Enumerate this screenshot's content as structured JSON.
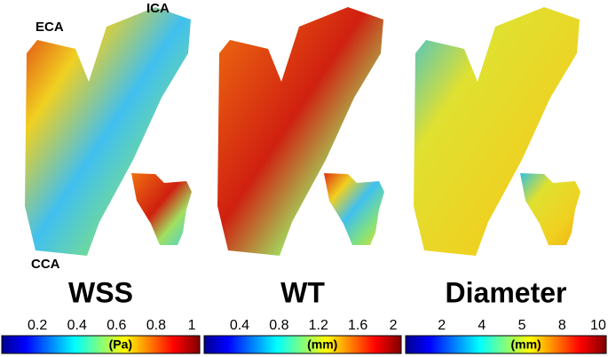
{
  "anatomy_labels": {
    "eca": "ECA",
    "ica": "ICA",
    "cca": "CCA"
  },
  "panels": [
    {
      "title": "WSS",
      "unit": "(Pa)",
      "ticks": [
        "0.2",
        "0.4",
        "0.6",
        "0.8",
        "1"
      ]
    },
    {
      "title": "WT",
      "unit": "(mm)",
      "ticks": [
        "0.4",
        "0.8",
        "1.2",
        "1.6",
        "2"
      ]
    },
    {
      "title": "Diameter",
      "unit": "(mm)",
      "ticks": [
        "2",
        "4",
        "5",
        "8",
        "10"
      ]
    }
  ]
}
